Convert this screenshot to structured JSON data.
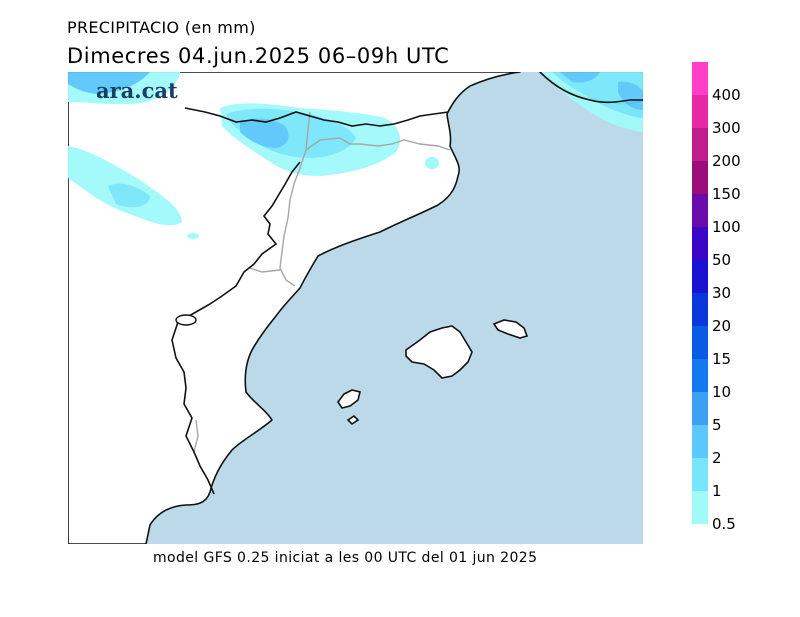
{
  "header": {
    "title": "PRECIPITACIO (en mm)",
    "subtitle": "Dimecres  04.jun.2025 06–09h UTC"
  },
  "brand": {
    "logo_text": "ara.cat"
  },
  "footer": {
    "model_text": "model GFS 0.25 iniciat a les 00 UTC del 01 jun 2025"
  },
  "map": {
    "sea_color": "#bcd9ea",
    "land_color": "#ffffff",
    "coast_color": "#111111",
    "border_color": "#a6a6a6"
  },
  "legend": {
    "levels": [
      {
        "label": "400",
        "color": "#ff3fc8"
      },
      {
        "label": "300",
        "color": "#e62aa6"
      },
      {
        "label": "200",
        "color": "#c21b8c"
      },
      {
        "label": "150",
        "color": "#9c0d79"
      },
      {
        "label": "100",
        "color": "#6a0aaa"
      },
      {
        "label": "50",
        "color": "#3c06c8"
      },
      {
        "label": "30",
        "color": "#1a14d2"
      },
      {
        "label": "20",
        "color": "#0a37dc"
      },
      {
        "label": "15",
        "color": "#0a5ae8"
      },
      {
        "label": "10",
        "color": "#1478f0"
      },
      {
        "label": "5",
        "color": "#3ca0f5"
      },
      {
        "label": "2",
        "color": "#5ac8fa"
      },
      {
        "label": "1",
        "color": "#78e6fa"
      },
      {
        "label": "0.5",
        "color": "#a0fafa"
      }
    ]
  }
}
